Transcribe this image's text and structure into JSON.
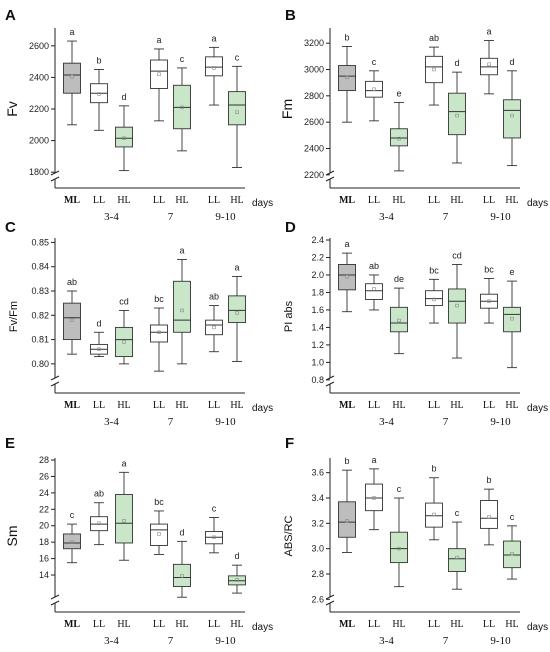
{
  "colors": {
    "ML": "#bdbdbd",
    "LL": "#ffffff",
    "HL": "#c9e6c8",
    "stroke": "#333333",
    "mean": "#888888"
  },
  "days_label": "days",
  "chart_data": [
    {
      "panel": "A",
      "type": "box",
      "ylabel": "Fv",
      "ylim": [
        1800,
        2700
      ],
      "ymin_axis": 1700,
      "ticks": [
        1800,
        2000,
        2200,
        2400,
        2600
      ],
      "axis_break": true,
      "groups": [
        {
          "label": "ML",
          "treat": "ML",
          "min": 2100,
          "q1": 2300,
          "median": 2415,
          "q3": 2490,
          "max": 2630,
          "mean": 2405,
          "letter": "a"
        },
        {
          "label": "LL",
          "treat": "LL",
          "min": 2065,
          "q1": 2240,
          "median": 2300,
          "q3": 2360,
          "max": 2450,
          "mean": 2295,
          "letter": "b"
        },
        {
          "label": "HL",
          "treat": "HL",
          "min": 1810,
          "q1": 1960,
          "median": 2015,
          "q3": 2085,
          "max": 2220,
          "mean": 2015,
          "letter": "d"
        },
        {
          "label": "LL",
          "treat": "LL",
          "min": 2125,
          "q1": 2330,
          "median": 2440,
          "q3": 2510,
          "max": 2580,
          "mean": 2420,
          "letter": "a"
        },
        {
          "label": "HL",
          "treat": "HL",
          "min": 1935,
          "q1": 2075,
          "median": 2210,
          "q3": 2350,
          "max": 2460,
          "mean": 2210,
          "letter": "c"
        },
        {
          "label": "LL",
          "treat": "LL",
          "min": 2225,
          "q1": 2410,
          "median": 2465,
          "q3": 2530,
          "max": 2590,
          "mean": 2460,
          "letter": "a"
        },
        {
          "label": "HL",
          "treat": "HL",
          "min": 1830,
          "q1": 2100,
          "median": 2225,
          "q3": 2310,
          "max": 2470,
          "mean": 2180,
          "letter": "c"
        }
      ]
    },
    {
      "panel": "B",
      "type": "box",
      "ylabel": "Fm",
      "ylim": [
        2200,
        3300
      ],
      "ymin_axis": 2100,
      "ticks": [
        2200,
        2400,
        2600,
        2800,
        3000,
        3200
      ],
      "axis_break": true,
      "groups": [
        {
          "label": "ML",
          "treat": "ML",
          "min": 2600,
          "q1": 2840,
          "median": 2950,
          "q3": 3030,
          "max": 3175,
          "mean": 2940,
          "letter": "b"
        },
        {
          "label": "LL",
          "treat": "LL",
          "min": 2610,
          "q1": 2790,
          "median": 2840,
          "q3": 2910,
          "max": 2990,
          "mean": 2850,
          "letter": "c"
        },
        {
          "label": "HL",
          "treat": "HL",
          "min": 2230,
          "q1": 2420,
          "median": 2480,
          "q3": 2550,
          "max": 2750,
          "mean": 2475,
          "letter": "e"
        },
        {
          "label": "LL",
          "treat": "LL",
          "min": 2730,
          "q1": 2900,
          "median": 3020,
          "q3": 3100,
          "max": 3170,
          "mean": 3000,
          "letter": "ab"
        },
        {
          "label": "HL",
          "treat": "HL",
          "min": 2290,
          "q1": 2505,
          "median": 2680,
          "q3": 2820,
          "max": 2980,
          "mean": 2650,
          "letter": "d"
        },
        {
          "label": "LL",
          "treat": "LL",
          "min": 2815,
          "q1": 2960,
          "median": 3020,
          "q3": 3085,
          "max": 3220,
          "mean": 3040,
          "letter": "a"
        },
        {
          "label": "HL",
          "treat": "HL",
          "min": 2270,
          "q1": 2480,
          "median": 2690,
          "q3": 2770,
          "max": 2990,
          "mean": 2650,
          "letter": "d"
        }
      ]
    },
    {
      "panel": "C",
      "type": "box",
      "ylabel": "Fv/Fm",
      "ylim": [
        0.795,
        0.851
      ],
      "ymin_axis": 0.788,
      "ticks": [
        0.8,
        0.81,
        0.82,
        0.83,
        0.84,
        0.85
      ],
      "tick_decimals": 2,
      "axis_break": true,
      "groups": [
        {
          "label": "ML",
          "treat": "ML",
          "min": 0.804,
          "q1": 0.81,
          "median": 0.819,
          "q3": 0.825,
          "max": 0.83,
          "mean": 0.818,
          "letter": "ab"
        },
        {
          "label": "LL",
          "treat": "LL",
          "min": 0.803,
          "q1": 0.804,
          "median": 0.806,
          "q3": 0.808,
          "max": 0.813,
          "mean": 0.806,
          "letter": "d"
        },
        {
          "label": "HL",
          "treat": "HL",
          "min": 0.8,
          "q1": 0.803,
          "median": 0.81,
          "q3": 0.815,
          "max": 0.822,
          "mean": 0.809,
          "letter": "cd"
        },
        {
          "label": "LL",
          "treat": "LL",
          "min": 0.797,
          "q1": 0.809,
          "median": 0.813,
          "q3": 0.816,
          "max": 0.823,
          "mean": 0.813,
          "letter": "bc"
        },
        {
          "label": "HL",
          "treat": "HL",
          "min": 0.8,
          "q1": 0.813,
          "median": 0.818,
          "q3": 0.834,
          "max": 0.843,
          "mean": 0.822,
          "letter": "a"
        },
        {
          "label": "LL",
          "treat": "LL",
          "min": 0.805,
          "q1": 0.812,
          "median": 0.816,
          "q3": 0.818,
          "max": 0.824,
          "mean": 0.815,
          "letter": "ab"
        },
        {
          "label": "HL",
          "treat": "HL",
          "min": 0.801,
          "q1": 0.817,
          "median": 0.822,
          "q3": 0.828,
          "max": 0.836,
          "mean": 0.821,
          "letter": "a"
        }
      ]
    },
    {
      "panel": "D",
      "type": "box",
      "ylabel": "PI abs",
      "ylim": [
        0.8,
        2.4
      ],
      "ymin_axis": 0.65,
      "ticks": [
        0.8,
        1.0,
        1.2,
        1.4,
        1.6,
        1.8,
        2.0,
        2.2,
        2.4
      ],
      "tick_decimals": 1,
      "axis_break": true,
      "groups": [
        {
          "label": "ML",
          "treat": "ML",
          "min": 1.58,
          "q1": 1.83,
          "median": 2.0,
          "q3": 2.12,
          "max": 2.25,
          "mean": 1.98,
          "letter": "a"
        },
        {
          "label": "LL",
          "treat": "LL",
          "min": 1.6,
          "q1": 1.72,
          "median": 1.82,
          "q3": 1.9,
          "max": 2.0,
          "mean": 1.84,
          "letter": "ab"
        },
        {
          "label": "HL",
          "treat": "HL",
          "min": 1.1,
          "q1": 1.35,
          "median": 1.45,
          "q3": 1.63,
          "max": 1.85,
          "mean": 1.48,
          "letter": "de"
        },
        {
          "label": "LL",
          "treat": "LL",
          "min": 1.45,
          "q1": 1.65,
          "median": 1.73,
          "q3": 1.82,
          "max": 1.95,
          "mean": 1.72,
          "letter": "bc"
        },
        {
          "label": "HL",
          "treat": "HL",
          "min": 1.05,
          "q1": 1.45,
          "median": 1.7,
          "q3": 1.84,
          "max": 2.12,
          "mean": 1.65,
          "letter": "cd"
        },
        {
          "label": "LL",
          "treat": "LL",
          "min": 1.45,
          "q1": 1.62,
          "median": 1.7,
          "q3": 1.78,
          "max": 1.96,
          "mean": 1.7,
          "letter": "bc"
        },
        {
          "label": "HL",
          "treat": "HL",
          "min": 0.94,
          "q1": 1.35,
          "median": 1.55,
          "q3": 1.63,
          "max": 1.93,
          "mean": 1.5,
          "letter": "e"
        }
      ]
    },
    {
      "panel": "E",
      "type": "box",
      "ylabel": "Sm",
      "ylim": [
        12,
        28
      ],
      "ymin_axis": 9.5,
      "ticks": [
        14,
        16,
        18,
        20,
        22,
        24,
        26,
        28
      ],
      "axis_break": true,
      "groups": [
        {
          "label": "ML",
          "treat": "ML",
          "min": 15.5,
          "q1": 17.2,
          "median": 17.9,
          "q3": 19.0,
          "max": 20.2,
          "mean": 18.0,
          "letter": "c"
        },
        {
          "label": "LL",
          "treat": "LL",
          "min": 17.7,
          "q1": 19.4,
          "median": 20.2,
          "q3": 21.1,
          "max": 22.8,
          "mean": 20.3,
          "letter": "ab"
        },
        {
          "label": "HL",
          "treat": "HL",
          "min": 15.8,
          "q1": 17.9,
          "median": 20.3,
          "q3": 23.8,
          "max": 26.5,
          "mean": 20.6,
          "letter": "a"
        },
        {
          "label": "LL",
          "treat": "LL",
          "min": 16.5,
          "q1": 17.6,
          "median": 19.5,
          "q3": 20.2,
          "max": 21.8,
          "mean": 19.0,
          "letter": "bc"
        },
        {
          "label": "HL",
          "treat": "HL",
          "min": 11.3,
          "q1": 12.6,
          "median": 13.7,
          "q3": 15.3,
          "max": 18.1,
          "mean": 13.9,
          "letter": "d"
        },
        {
          "label": "LL",
          "treat": "LL",
          "min": 16.7,
          "q1": 17.8,
          "median": 18.6,
          "q3": 19.3,
          "max": 21.0,
          "mean": 18.6,
          "letter": "c"
        },
        {
          "label": "HL",
          "treat": "HL",
          "min": 11.8,
          "q1": 12.8,
          "median": 13.3,
          "q3": 13.9,
          "max": 15.2,
          "mean": 13.4,
          "letter": "d"
        }
      ]
    },
    {
      "panel": "F",
      "type": "box",
      "ylabel": "ABS/RC",
      "ylim": [
        2.6,
        3.7
      ],
      "ymin_axis": 2.5,
      "ticks": [
        2.6,
        2.8,
        3.0,
        3.2,
        3.4,
        3.6
      ],
      "tick_decimals": 1,
      "axis_break": true,
      "groups": [
        {
          "label": "ML",
          "treat": "ML",
          "min": 2.97,
          "q1": 3.09,
          "median": 3.21,
          "q3": 3.37,
          "max": 3.62,
          "mean": 3.22,
          "letter": "b"
        },
        {
          "label": "LL",
          "treat": "LL",
          "min": 3.15,
          "q1": 3.3,
          "median": 3.4,
          "q3": 3.51,
          "max": 3.63,
          "mean": 3.4,
          "letter": "a"
        },
        {
          "label": "HL",
          "treat": "HL",
          "min": 2.7,
          "q1": 2.89,
          "median": 3.0,
          "q3": 3.13,
          "max": 3.4,
          "mean": 3.0,
          "letter": "c"
        },
        {
          "label": "LL",
          "treat": "LL",
          "min": 3.07,
          "q1": 3.17,
          "median": 3.26,
          "q3": 3.36,
          "max": 3.56,
          "mean": 3.27,
          "letter": "b"
        },
        {
          "label": "HL",
          "treat": "HL",
          "min": 2.68,
          "q1": 2.82,
          "median": 2.92,
          "q3": 3.0,
          "max": 3.21,
          "mean": 2.93,
          "letter": "c"
        },
        {
          "label": "LL",
          "treat": "LL",
          "min": 3.03,
          "q1": 3.16,
          "median": 3.24,
          "q3": 3.38,
          "max": 3.47,
          "mean": 3.25,
          "letter": "b"
        },
        {
          "label": "HL",
          "treat": "HL",
          "min": 2.76,
          "q1": 2.85,
          "median": 2.95,
          "q3": 3.06,
          "max": 3.18,
          "mean": 2.96,
          "letter": "c"
        }
      ]
    }
  ],
  "day_groups": [
    {
      "label": "3-4",
      "members": [
        1,
        2
      ]
    },
    {
      "label": "7",
      "members": [
        3,
        4
      ]
    },
    {
      "label": "9-10",
      "members": [
        5,
        6
      ]
    }
  ]
}
